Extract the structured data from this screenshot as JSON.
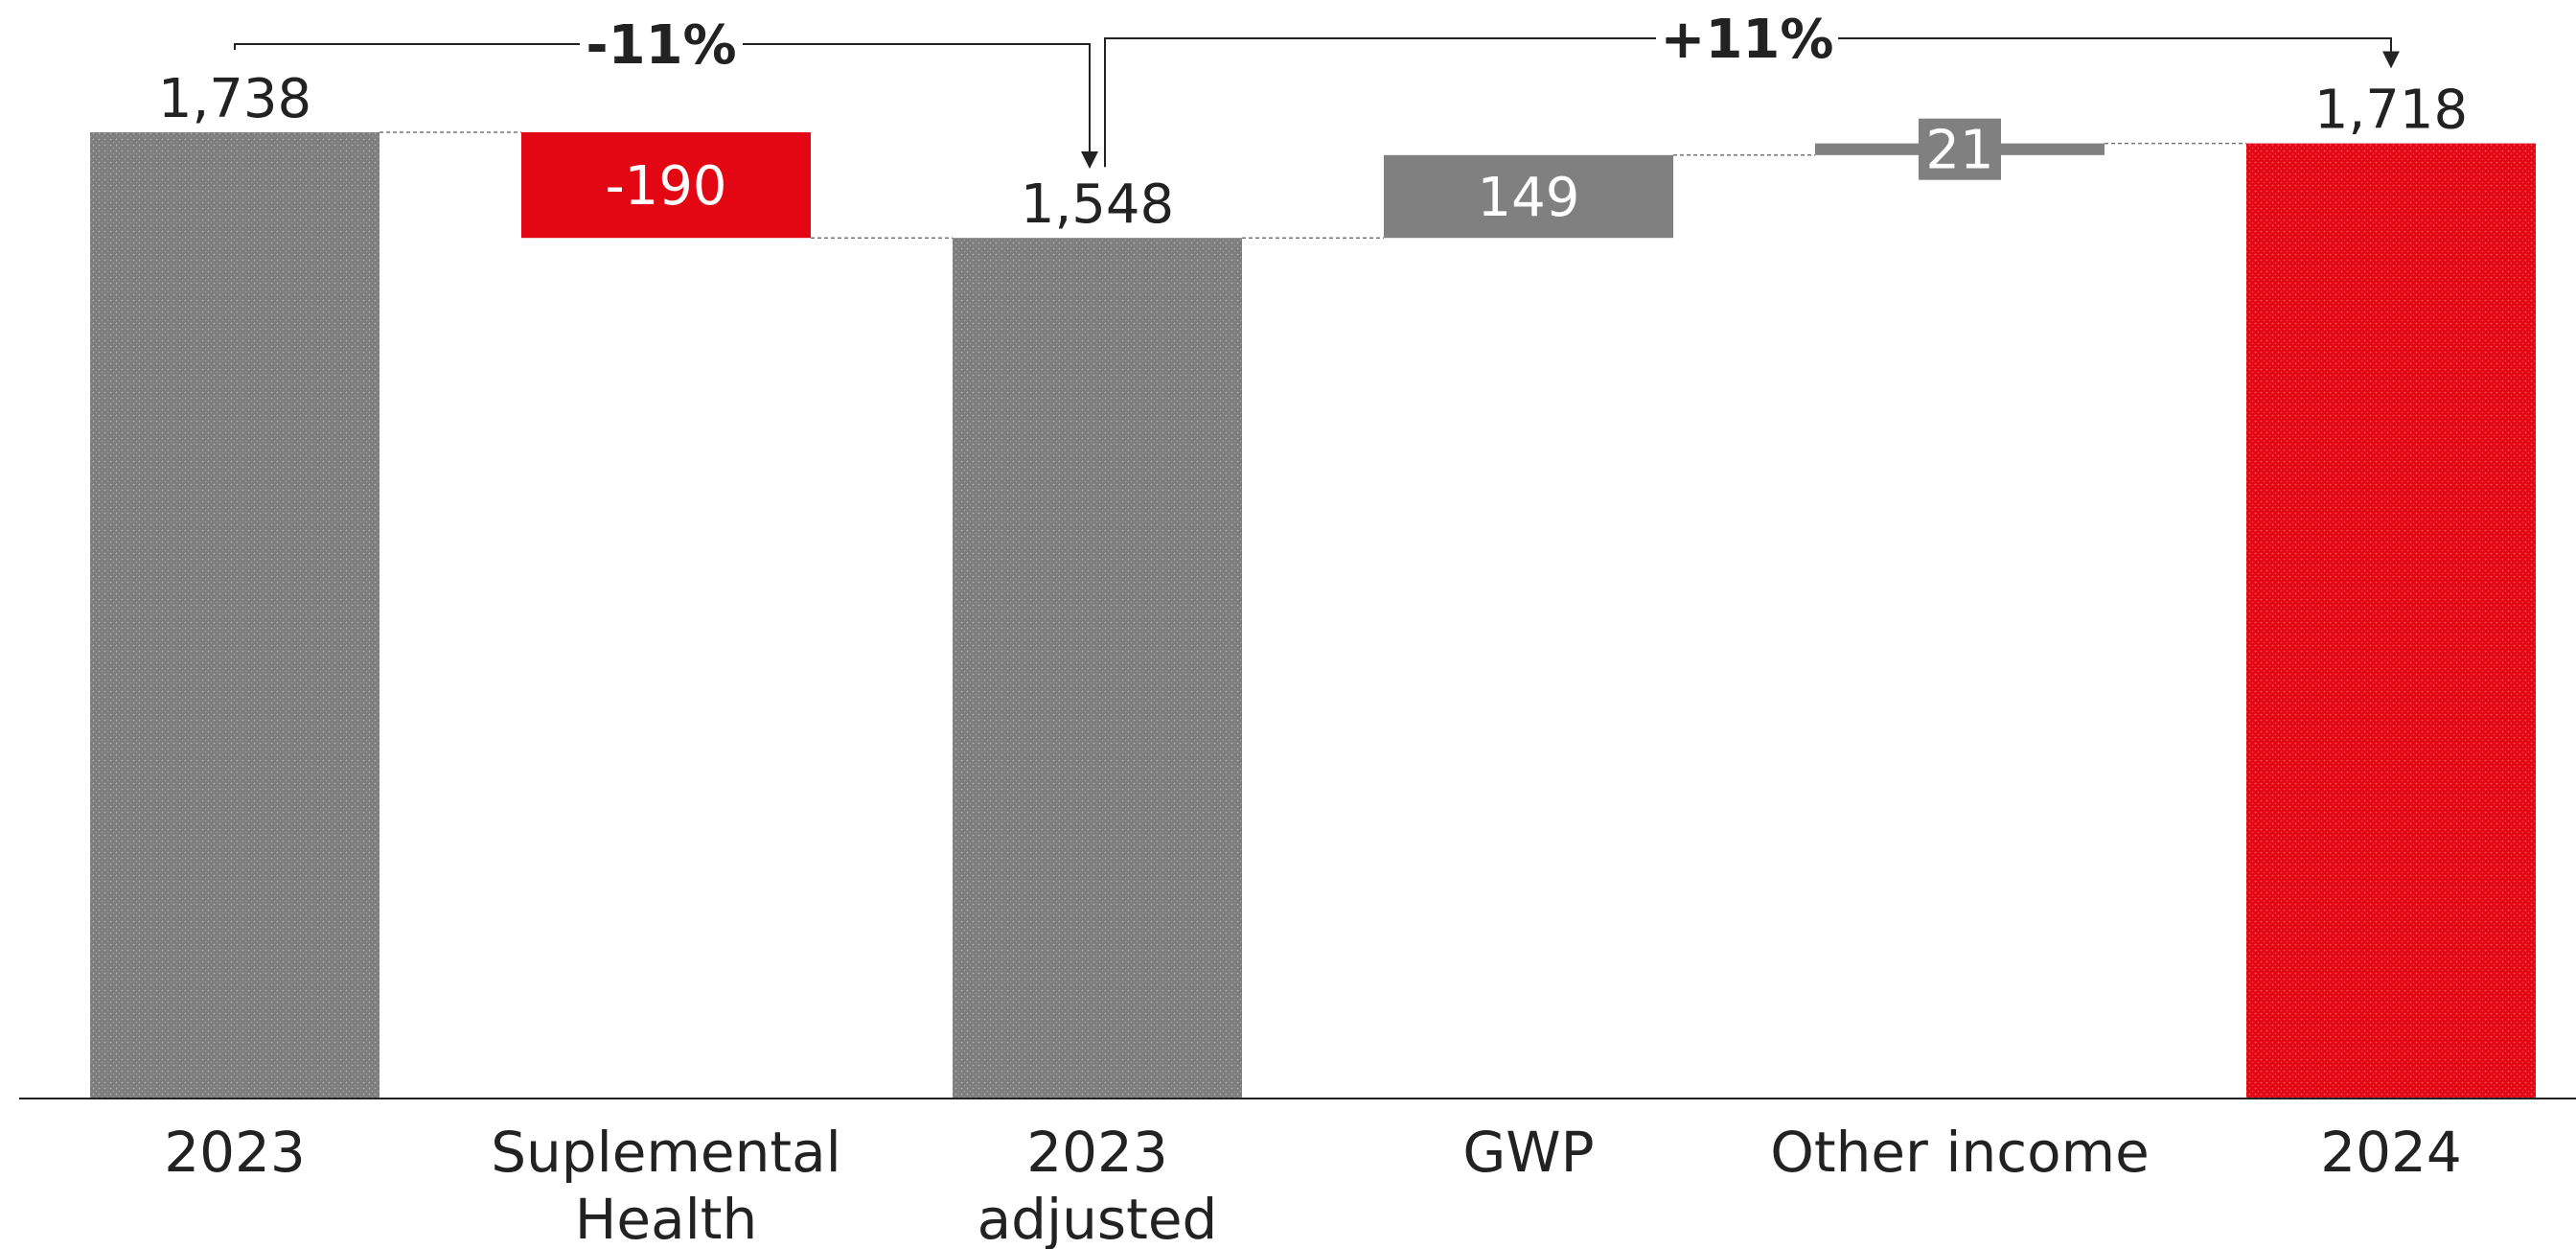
{
  "chart_data": {
    "type": "waterfall",
    "categories": [
      "2023",
      "Suplemental Health",
      "2023 adjusted",
      "GWP",
      "Other income",
      "2024"
    ],
    "steps": [
      {
        "category": "2023",
        "kind": "total",
        "value": 1738,
        "label": "1,738"
      },
      {
        "category": "Suplemental Health",
        "kind": "delta",
        "value": -190,
        "label": "-190"
      },
      {
        "category": "2023 adjusted",
        "kind": "total",
        "value": 1548,
        "label": "1,548"
      },
      {
        "category": "GWP",
        "kind": "delta",
        "value": 149,
        "label": "149"
      },
      {
        "category": "Other income",
        "kind": "delta",
        "value": 21,
        "label": "21"
      },
      {
        "category": "2024",
        "kind": "total",
        "value": 1718,
        "label": "1,718"
      }
    ],
    "category_labels": [
      [
        "2023"
      ],
      [
        "Suplemental",
        "Health"
      ],
      [
        "2023",
        "adjusted"
      ],
      [
        "GWP"
      ],
      [
        "Other income"
      ],
      [
        "2024"
      ]
    ],
    "annotations": [
      {
        "text": "-11%",
        "from": "2023",
        "to": "2023 adjusted"
      },
      {
        "text": "+11%",
        "from": "2023 adjusted",
        "to": "2024"
      }
    ],
    "ylim": [
      0,
      1738
    ],
    "colors": {
      "total": "#808080",
      "total_final": "#e30613",
      "negative": "#e30613",
      "positive": "#808080"
    },
    "title": "",
    "xlabel": "",
    "ylabel": ""
  }
}
